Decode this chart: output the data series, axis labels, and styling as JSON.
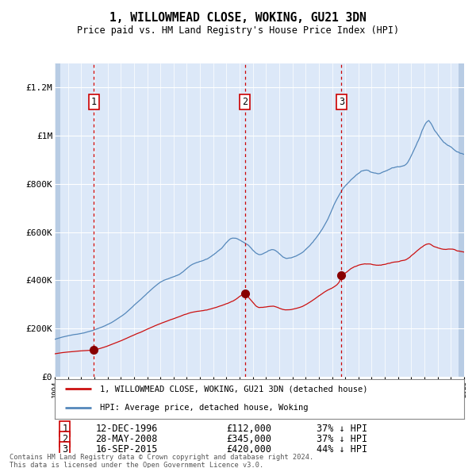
{
  "title": "1, WILLOWMEAD CLOSE, WOKING, GU21 3DN",
  "subtitle": "Price paid vs. HM Land Registry's House Price Index (HPI)",
  "x_start_year": 1994,
  "x_end_year": 2025,
  "y_min": 0,
  "y_max": 1300000,
  "y_ticks": [
    0,
    200000,
    400000,
    600000,
    800000,
    1000000,
    1200000
  ],
  "y_tick_labels": [
    "£0",
    "£200K",
    "£400K",
    "£600K",
    "£800K",
    "£1M",
    "£1.2M"
  ],
  "plot_bg_color": "#dce8f8",
  "hatch_color": "#b8cce4",
  "grid_color": "#ffffff",
  "hpi_line_color": "#5588bb",
  "price_line_color": "#cc1111",
  "sale_marker_color": "#880000",
  "vline_color": "#cc0000",
  "sale_points": [
    {
      "year": 1996.95,
      "price": 112000,
      "label": "1"
    },
    {
      "year": 2008.41,
      "price": 345000,
      "label": "2"
    },
    {
      "year": 2015.71,
      "price": 420000,
      "label": "3"
    }
  ],
  "legend_items": [
    {
      "label": "1, WILLOWMEAD CLOSE, WOKING, GU21 3DN (detached house)",
      "color": "#cc1111"
    },
    {
      "label": "HPI: Average price, detached house, Woking",
      "color": "#5588bb"
    }
  ],
  "table_rows": [
    {
      "num": "1",
      "date": "12-DEC-1996",
      "price": "£112,000",
      "hpi": "37% ↓ HPI"
    },
    {
      "num": "2",
      "date": "28-MAY-2008",
      "price": "£345,000",
      "hpi": "37% ↓ HPI"
    },
    {
      "num": "3",
      "date": "16-SEP-2015",
      "price": "£420,000",
      "hpi": "44% ↓ HPI"
    }
  ],
  "footer": "Contains HM Land Registry data © Crown copyright and database right 2024.\nThis data is licensed under the Open Government Licence v3.0."
}
